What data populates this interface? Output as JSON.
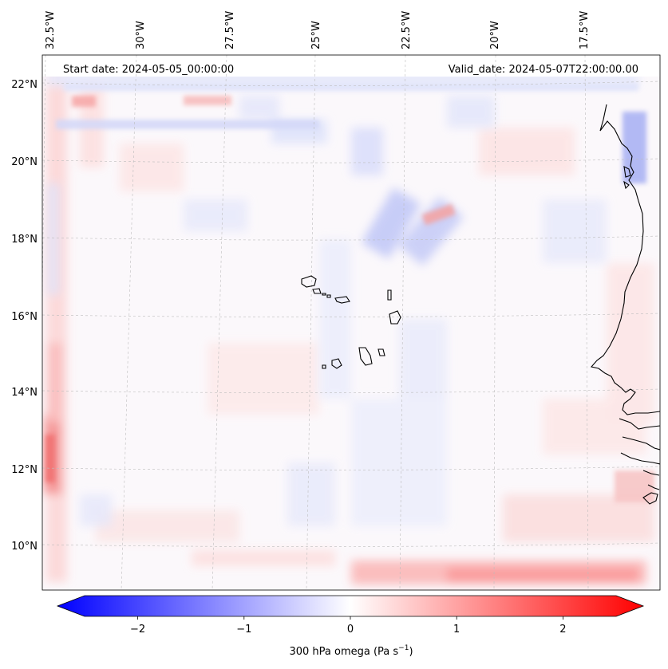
{
  "map": {
    "start_date": "Start date: 2024-05-05_00:00:00",
    "valid_date": "Valid_date: 2024-05-07T22:00:00.00",
    "lon_labels": [
      "32.5°W",
      "30°W",
      "27.5°W",
      "25°W",
      "22.5°W",
      "20°W",
      "17.5°W"
    ],
    "lat_labels": [
      "22°N",
      "20°N",
      "18°N",
      "16°N",
      "14°N",
      "12°N",
      "10°N"
    ],
    "variable": "300 hPa omega",
    "units_prefix": "300 hPa omega (Pa s",
    "units_exp": "−1",
    "units_suffix": ")"
  },
  "colorbar": {
    "tick_labels": [
      "−2",
      "−1",
      "0",
      "1",
      "2"
    ],
    "tick_values": [
      -2,
      -1,
      0,
      1,
      2
    ],
    "range": [
      -2.6,
      2.6
    ],
    "colormap": "bwr",
    "color_min": "#0000ff",
    "color_mid": "#ffffff",
    "color_max": "#ff0000"
  }
}
